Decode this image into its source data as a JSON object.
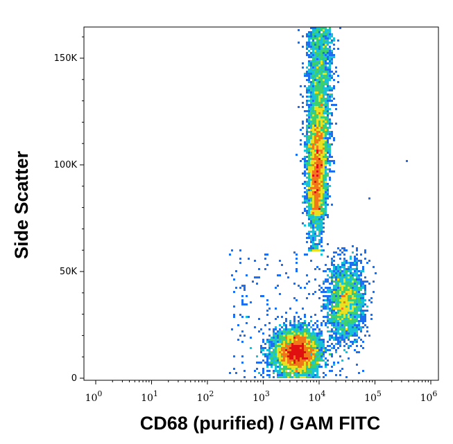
{
  "chart_data": {
    "type": "scatter",
    "subtype": "flow-cytometry density dot plot",
    "xlabel": "CD68 (purified) / GAM FITC",
    "ylabel": "Side Scatter",
    "x_scale": "log",
    "xlim": [
      1,
      1000000
    ],
    "ylim": [
      0,
      165000
    ],
    "x_ticks": [
      {
        "base": "10",
        "exp": "0"
      },
      {
        "base": "10",
        "exp": "1"
      },
      {
        "base": "10",
        "exp": "2"
      },
      {
        "base": "10",
        "exp": "3"
      },
      {
        "base": "10",
        "exp": "4"
      },
      {
        "base": "10",
        "exp": "5"
      },
      {
        "base": "10",
        "exp": "6"
      }
    ],
    "y_ticks": [
      {
        "value": 0,
        "label": "0"
      },
      {
        "value": 50000,
        "label": "50K"
      },
      {
        "value": 100000,
        "label": "100K"
      },
      {
        "value": 150000,
        "label": "150K"
      }
    ],
    "grid": false,
    "color_scale": [
      "#0000cd",
      "#1e6ef0",
      "#18c0d8",
      "#3cd070",
      "#e8e020",
      "#f07818",
      "#e01010"
    ],
    "populations": [
      {
        "description": "low side-scatter cluster",
        "x_center": 4000,
        "y_center": 12000,
        "relative_density": "highest"
      },
      {
        "description": "elongated high side-scatter cluster",
        "x_center": 9000,
        "y_range": [
          45000,
          165000
        ],
        "relative_density": "high"
      },
      {
        "description": "medium side-scatter cluster",
        "x_center": 30000,
        "y_center": 35000,
        "relative_density": "medium"
      }
    ]
  }
}
